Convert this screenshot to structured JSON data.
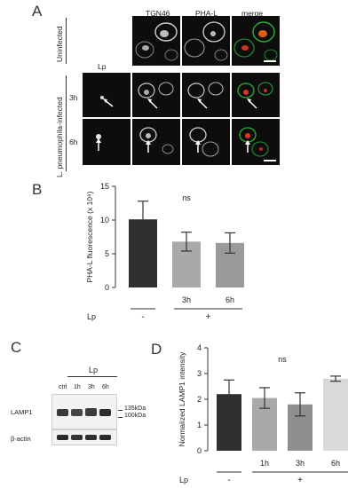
{
  "panels": {
    "a": {
      "label": "A",
      "column_headers": [
        "Lp",
        "TGN46",
        "PHA-L",
        "merge"
      ],
      "row_groups": {
        "uninfected": "Uninfected",
        "infected": "L. pneumophila-infected"
      },
      "time_labels": [
        "3h",
        "6h"
      ]
    },
    "b": {
      "label": "B",
      "ylabel": "PHA-L fluorescence (x 10⁹)",
      "y_ticks": [
        "0",
        "5",
        "10",
        "15"
      ],
      "annotation": "ns",
      "xtick_labels": [
        "",
        "3h",
        "6h"
      ],
      "lp_label": "Lp",
      "group_labels": [
        "-",
        "+"
      ]
    },
    "c": {
      "label": "C",
      "lp_label": "Lp",
      "lanes": [
        "ctrl",
        "1h",
        "3h",
        "6h"
      ],
      "rows": [
        "LAMP1",
        "β-actin"
      ],
      "markers": [
        "135kDa",
        "100kDa"
      ]
    },
    "d": {
      "label": "D",
      "ylabel": "Normalized LAMP1 intensity",
      "y_ticks": [
        "0",
        "1",
        "2",
        "3",
        "4"
      ],
      "annotation": "ns",
      "xtick_labels": [
        "",
        "1h",
        "3h",
        "6h"
      ],
      "lp_label": "Lp",
      "group_labels": [
        "-",
        "+"
      ]
    }
  },
  "chart_data": [
    {
      "type": "bar",
      "categories": [
        "-",
        "3h",
        "6h"
      ],
      "values": [
        10.1,
        6.8,
        6.6
      ],
      "errors": [
        2.7,
        1.4,
        1.5
      ],
      "colors": [
        "#2f2f2f",
        "#a9a9a9",
        "#9a9a9a"
      ],
      "ylim": [
        0,
        15
      ],
      "ylabel": "PHA-L fluorescence (x 10⁹)"
    },
    {
      "type": "bar",
      "categories": [
        "-",
        "1h",
        "3h",
        "6h"
      ],
      "values": [
        2.2,
        2.05,
        1.8,
        2.8
      ],
      "errors": [
        0.55,
        0.4,
        0.45,
        0.1
      ],
      "colors": [
        "#2f2f2f",
        "#a9a9a9",
        "#8f8f8f",
        "#d9d9d9"
      ],
      "ylim": [
        0,
        4
      ],
      "ylabel": "Normalized LAMP1 intensity"
    }
  ]
}
